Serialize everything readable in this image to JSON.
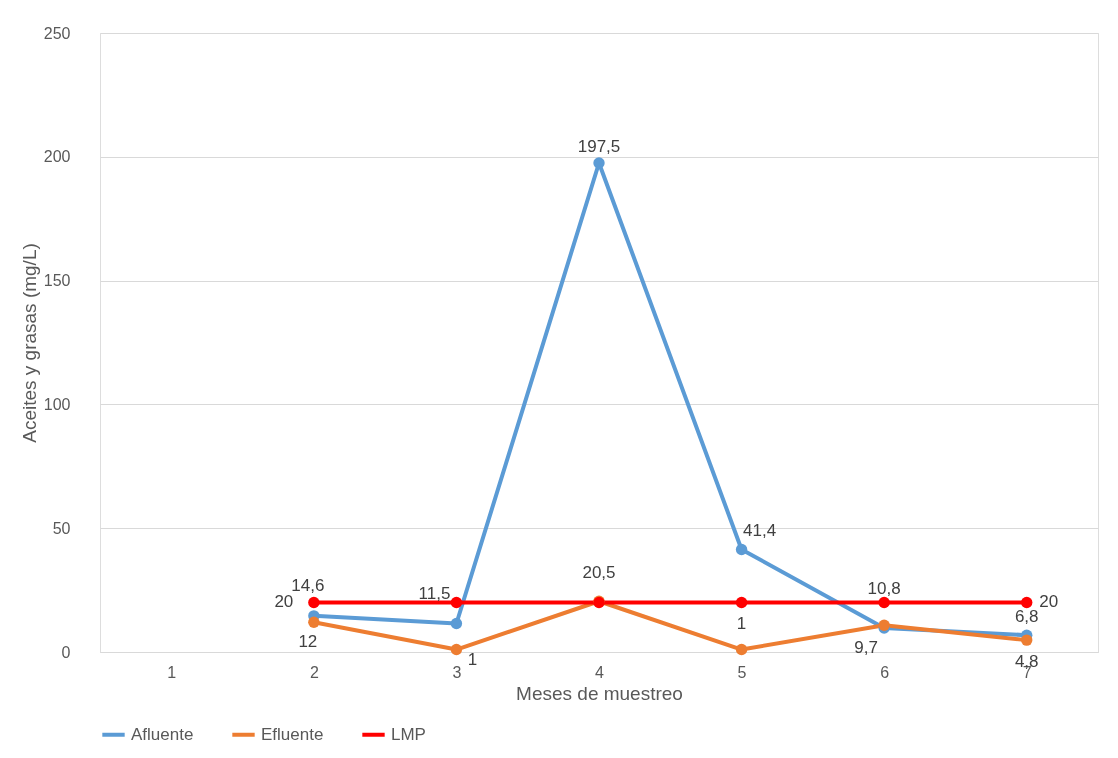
{
  "chart_data": {
    "type": "line",
    "xlabel": "Meses de muestreo",
    "ylabel": "Aceites y grasas (mg/L)",
    "categories": [
      "1",
      "2",
      "3",
      "4",
      "5",
      "6",
      "7"
    ],
    "series": [
      {
        "name": "Afluente",
        "color": "#5b9bd5",
        "values": [
          null,
          14.6,
          11.5,
          197.5,
          41.4,
          9.7,
          6.8
        ],
        "value_labels": [
          null,
          "14,6",
          "11,5",
          "197,5",
          "41,4",
          "9,7",
          "6,8"
        ]
      },
      {
        "name": "Efluente",
        "color": "#ed7d31",
        "values": [
          null,
          12,
          1,
          20.5,
          1,
          10.8,
          4.8
        ],
        "value_labels": [
          null,
          "12",
          "1",
          "20,5",
          "1",
          "10,8",
          "4,8"
        ]
      },
      {
        "name": "LMP",
        "color": "#ff0000",
        "values": [
          null,
          20,
          20,
          20,
          20,
          20,
          20
        ],
        "value_labels": [
          null,
          "20",
          null,
          null,
          null,
          null,
          "20"
        ]
      }
    ],
    "ylim": [
      0,
      250
    ],
    "yticks": [
      0,
      50,
      100,
      150,
      200,
      250
    ],
    "grid": "y",
    "legend": "bottom",
    "marker": "circle",
    "line_style": "solid"
  }
}
